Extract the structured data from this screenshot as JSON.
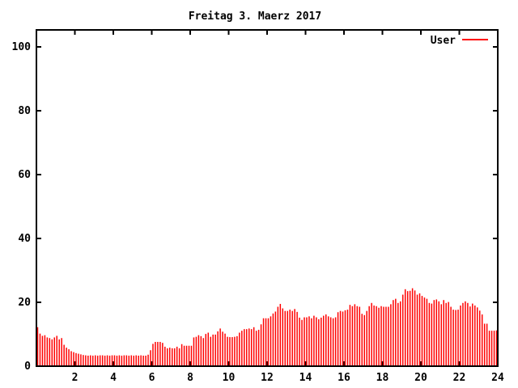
{
  "window": {
    "background": "#ffffff"
  },
  "chart_data": {
    "type": "bar",
    "render_style": "impulses",
    "title": "Freitag 3. Maerz 2017",
    "xlabel": "",
    "ylabel": "",
    "x_unit": "hour-of-day",
    "xlim": [
      0,
      24
    ],
    "ylim": [
      0,
      105.3
    ],
    "x_ticks": [
      2,
      4,
      6,
      8,
      10,
      12,
      14,
      16,
      18,
      20,
      22,
      24
    ],
    "y_ticks": [
      0,
      20,
      40,
      60,
      80,
      100
    ],
    "grid": false,
    "legend": {
      "position": "top-right-inside",
      "entries": [
        {
          "label": "User",
          "color": "#ff0000"
        }
      ]
    },
    "colors": {
      "bars": "#ff0000",
      "axis": "#000000",
      "text": "#000000",
      "background": "#ffffff"
    },
    "series": [
      {
        "name": "User",
        "color": "#ff0000",
        "x_start": 0.0625,
        "x_step": 0.125,
        "values": [
          12.2,
          10.2,
          9.5,
          9.7,
          9.0,
          8.8,
          8.4,
          9.0,
          9.5,
          8.4,
          8.8,
          6.7,
          5.8,
          5.3,
          4.7,
          4.4,
          4.1,
          3.9,
          3.7,
          3.5,
          3.4,
          3.3,
          3.4,
          3.3,
          3.4,
          3.3,
          3.4,
          3.4,
          3.3,
          3.4,
          3.3,
          3.4,
          3.4,
          3.3,
          3.4,
          3.3,
          3.4,
          3.4,
          3.3,
          3.4,
          3.3,
          3.4,
          3.3,
          3.4,
          3.3,
          3.3,
          3.6,
          5.0,
          7.0,
          7.6,
          7.6,
          7.6,
          7.3,
          6.1,
          5.6,
          5.8,
          5.6,
          5.6,
          6.1,
          5.6,
          6.9,
          6.4,
          6.4,
          6.4,
          6.4,
          9.0,
          9.2,
          9.7,
          9.4,
          8.8,
          10.1,
          10.5,
          9.2,
          9.9,
          9.9,
          10.9,
          11.8,
          10.8,
          10.2,
          9.2,
          9.1,
          9.1,
          9.2,
          9.4,
          10.5,
          11.1,
          11.6,
          11.6,
          11.8,
          11.6,
          12.2,
          11.1,
          11.4,
          13.1,
          15.0,
          15.0,
          15.0,
          15.6,
          16.5,
          17.1,
          18.6,
          19.5,
          18.1,
          17.3,
          17.3,
          17.7,
          17.3,
          17.9,
          17.0,
          15.2,
          14.5,
          15.3,
          15.3,
          15.6,
          15.0,
          15.8,
          15.3,
          14.7,
          15.2,
          15.8,
          16.2,
          15.6,
          15.3,
          15.0,
          15.3,
          16.9,
          17.3,
          17.1,
          17.5,
          17.7,
          19.2,
          18.8,
          19.4,
          18.8,
          18.6,
          16.4,
          16.0,
          17.3,
          18.8,
          19.8,
          19.0,
          18.8,
          18.3,
          18.8,
          18.6,
          18.6,
          18.6,
          19.4,
          20.7,
          21.1,
          19.8,
          20.3,
          22.4,
          24.1,
          23.5,
          23.6,
          24.4,
          23.7,
          22.4,
          22.8,
          22.0,
          21.5,
          21.1,
          19.8,
          19.6,
          20.7,
          20.9,
          20.3,
          19.4,
          20.7,
          19.8,
          20.1,
          18.6,
          17.7,
          17.6,
          17.7,
          19.0,
          19.8,
          20.3,
          19.8,
          18.7,
          19.6,
          19.0,
          18.4,
          17.4,
          16.2,
          13.3,
          13.3,
          11.1,
          11.1,
          11.1,
          11.2
        ]
      }
    ]
  }
}
